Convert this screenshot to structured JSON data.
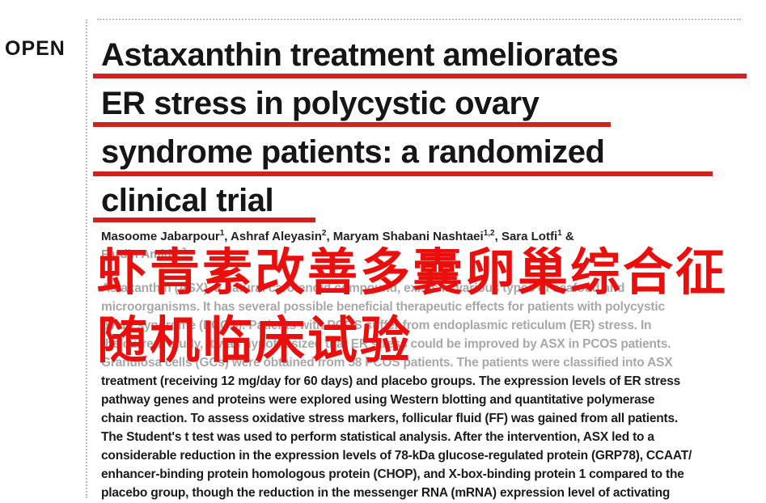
{
  "badge": {
    "open_label": "OPEN"
  },
  "article": {
    "title_lines": [
      "Astaxanthin treatment ameliorates",
      "ER stress in polycystic ovary",
      "syndrome patients: a randomized",
      "clinical trial"
    ],
    "authors_line1": [
      {
        "t": "Masoome Jabarpour"
      },
      {
        "t": "1"
      },
      {
        "t": ", Ashraf Aleyasin"
      },
      {
        "t": "2"
      },
      {
        "t": ", Maryam Shabani Nashtaei"
      },
      {
        "t": "1,2"
      },
      {
        "t": ", Sara Lotfi"
      },
      {
        "t": "1"
      },
      {
        "t": " &"
      }
    ],
    "authors_line2": [
      {
        "t": "Fardin Amidi"
      },
      {
        "t": "1,2"
      }
    ],
    "abstract_lines": [
      {
        "text": "Astaxanthin (ASX), a natural carotenoid compound, exists in various types of seafood and"
      },
      {
        "text": "microorganisms. It has several possible beneficial therapeutic effects for patients with polycystic"
      },
      {
        "text": "ovary syndrome (PCOS). Patients with PCOS suffer from endoplasmic reticulum (ER) stress. In"
      },
      {
        "text": "the current study, it was hypothesized that ER stress could be improved by ASX in PCOS patients."
      },
      {
        "text": "Granulosa cells (GCs) were obtained from 58 PCOS patients. The patients were classified into ASX"
      },
      {
        "text": "treatment (receiving 12 mg/day for 60 days) and placebo groups. The expression levels of ER stress"
      },
      {
        "text": "pathway genes and proteins were explored using Western blotting and quantitative polymerase"
      },
      {
        "text": "chain reaction. To assess oxidative stress markers, follicular fluid (FF) was gained from all patients."
      },
      {
        "text": "The Student's t test was used to perform statistical analysis. After the intervention, ASX led to a"
      },
      {
        "text": "considerable reduction in the expression levels of 78-kDa glucose-regulated protein (GRP78), CCAAT/"
      },
      {
        "text": "enhancer-binding protein homologous protein (CHOP), and X-box-binding protein 1 compared to the"
      },
      {
        "text": "placebo group, though the reduction in the messenger RNA (mRNA) expression level of activating"
      }
    ]
  },
  "annotation_overlay": {
    "line1": "虾青素改善多囊卵巢综合征",
    "line2": "随机临床试验",
    "text_color": "#ea0e0c"
  },
  "colors": {
    "title_underline_red": "#cf2320",
    "title_text": "#161616",
    "faded_abstract_gray": "#a8a8a8",
    "dark_abstract": "#1b1b1b",
    "dotted_border_gray": "#bfbfbf"
  }
}
